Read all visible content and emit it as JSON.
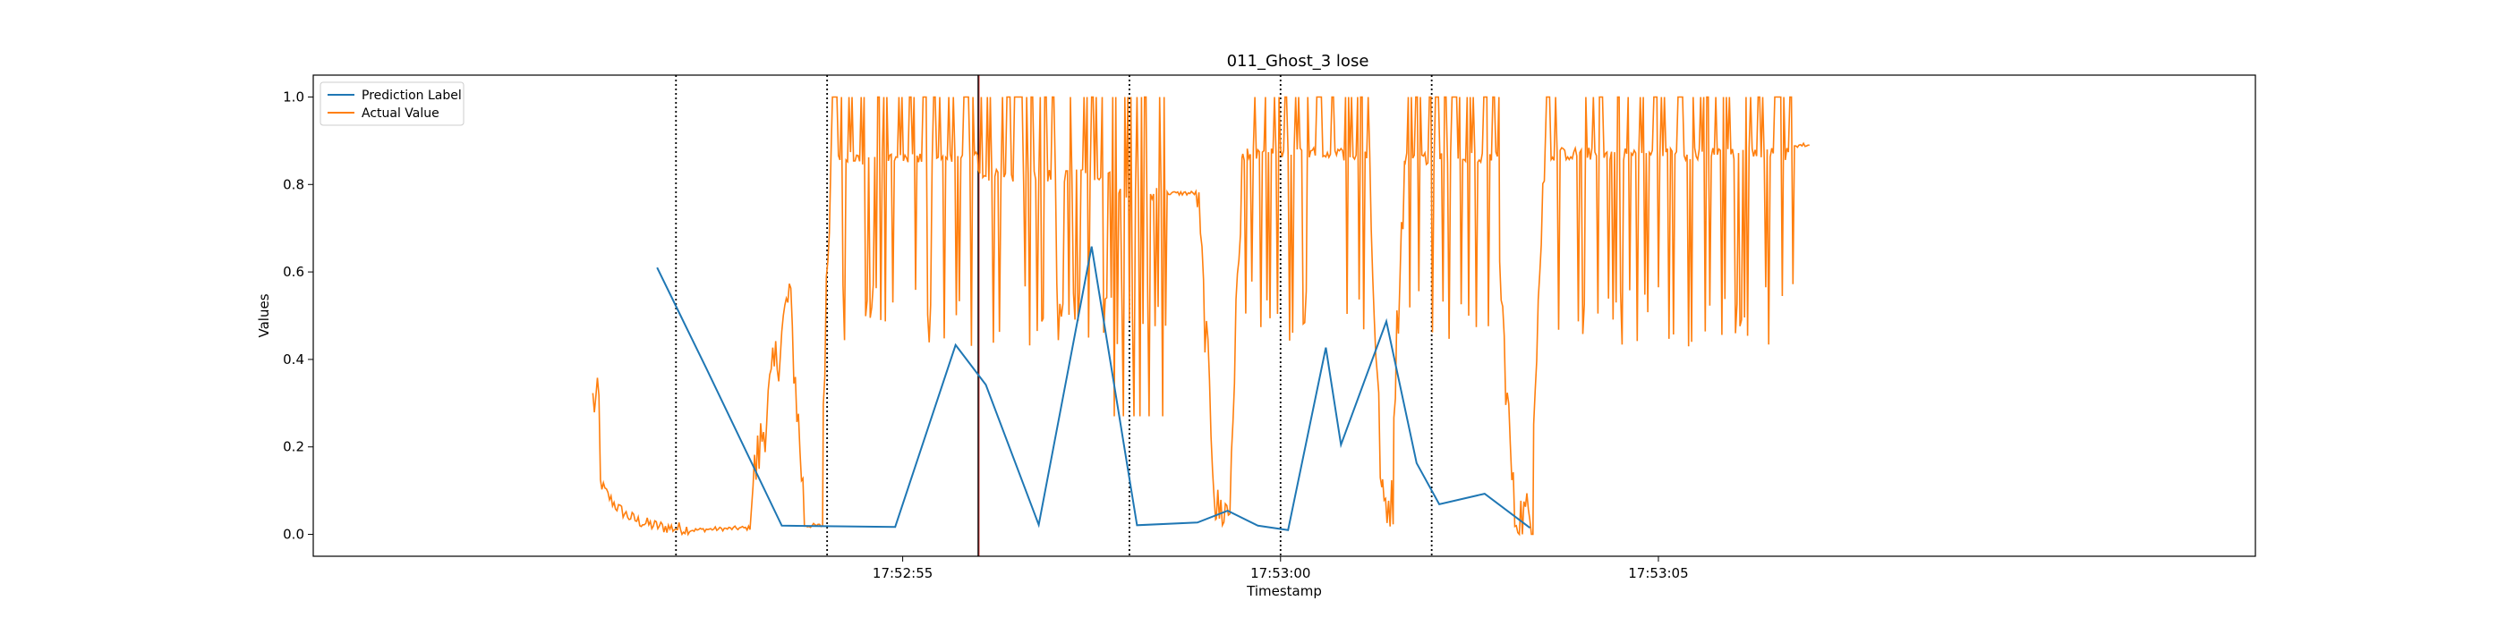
{
  "chart_data": {
    "type": "line",
    "title": "011_Ghost_3 lose",
    "xlabel": "Timestamp",
    "ylabel": "Values",
    "x_tick_labels": [
      "17:52:55",
      "17:53:00",
      "17:53:05"
    ],
    "x_tick_seconds": [
      55,
      60,
      65
    ],
    "x_unit": "seconds after 17:52:00",
    "xlim": [
      47.2,
      72.9
    ],
    "ylim": [
      -0.05,
      1.05
    ],
    "yticks": [
      0.0,
      0.2,
      0.4,
      0.6,
      0.8,
      1.0
    ],
    "ytick_labels": [
      "0.0",
      "0.2",
      "0.4",
      "0.6",
      "0.8",
      "1.0"
    ],
    "grid": false,
    "legend_position": "top-left",
    "colors": {
      "prediction": "#1f77b4",
      "actual": "#ff7f0e",
      "vline": "#000000",
      "current": "#d62728"
    },
    "vertical_lines": {
      "dotted_x": [
        52.0,
        54.0,
        58.0,
        60.0,
        62.0
      ],
      "solid_x": 56.0
    },
    "series": [
      {
        "name": "Prediction Label",
        "x": [
          51.75,
          52.4,
          53.4,
          54.9,
          55.7,
          56.1,
          56.8,
          57.5,
          58.1,
          58.9,
          59.3,
          59.7,
          60.1,
          60.6,
          60.8,
          61.4,
          61.8,
          62.1,
          62.7,
          63.3,
          64.0,
          64.7,
          65.2,
          65.8
        ],
        "y": [
          0.61,
          0.38,
          0.02,
          0.017,
          0.433,
          0.342,
          0.022,
          0.658,
          0.021,
          0.027,
          0.054,
          0.02,
          0.01,
          0.427,
          0.205,
          0.487,
          0.163,
          0.069,
          0.093,
          0.015,
          null,
          null,
          null,
          null
        ]
      },
      {
        "name": "Actual Value",
        "x": [],
        "y": []
      }
    ]
  }
}
